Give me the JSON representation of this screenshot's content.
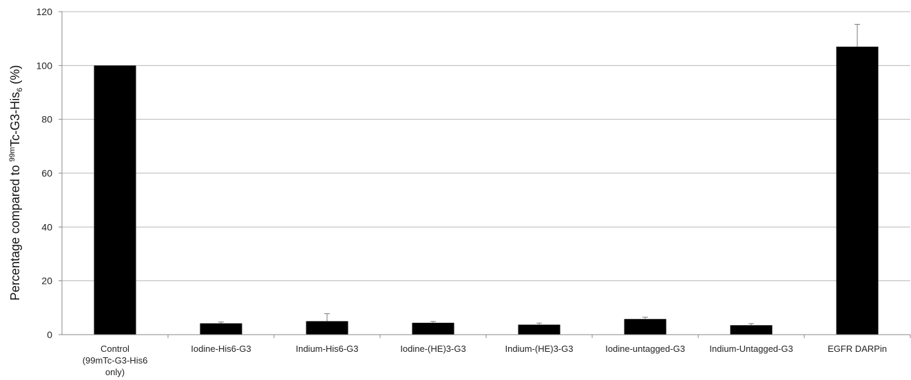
{
  "chart_data": {
    "type": "bar",
    "categories": [
      [
        "Control",
        "(99mTc-G3-His6",
        "only)"
      ],
      [
        "Iodine-His6-G3"
      ],
      [
        "Indium-His6-G3"
      ],
      [
        "Iodine-(HE)3-G3"
      ],
      [
        "Indium-(HE)3-G3"
      ],
      [
        "Iodine-untagged-G3"
      ],
      [
        "Indium-Untagged-G3"
      ],
      [
        "EGFR DARPin"
      ]
    ],
    "values": [
      100,
      4.2,
      5.0,
      4.4,
      3.7,
      5.8,
      3.5,
      107
    ],
    "errors": [
      0,
      0.5,
      2.8,
      0.5,
      0.6,
      0.7,
      0.6,
      8.3
    ],
    "ylim": [
      0,
      120
    ],
    "yticks": [
      0,
      20,
      40,
      60,
      80,
      100,
      120
    ],
    "ylabel": {
      "pre": "Percentage compared to ",
      "sup": "99m",
      "main": "Tc-G3-His",
      "sub": "6",
      "post": " (%)"
    },
    "grid": true,
    "bar_color": "#000000",
    "grid_color": "#b7b7b7"
  }
}
